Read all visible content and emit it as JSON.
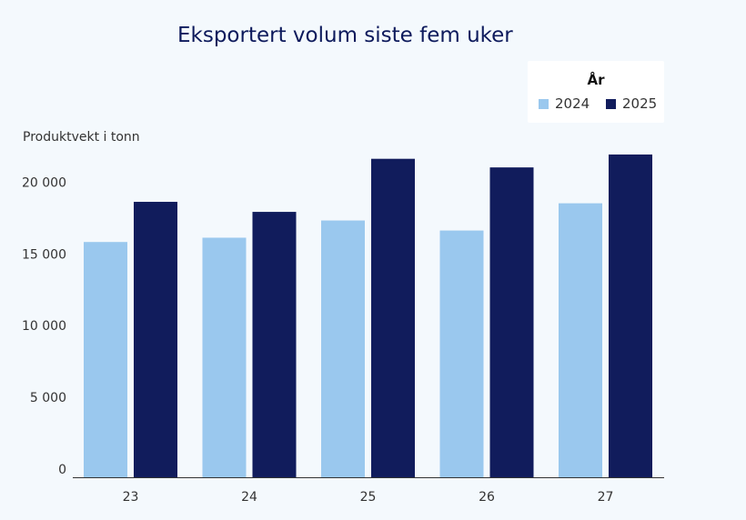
{
  "chart_data": {
    "type": "bar",
    "title": "Eksportert volum siste fem uker",
    "ylabel": "Produktvekt i tonn",
    "xlabel": "",
    "categories": [
      "23",
      "24",
      "25",
      "26",
      "27"
    ],
    "series": [
      {
        "name": "2024",
        "color": "#9ac8ee",
        "values": [
          16400,
          16700,
          17900,
          17200,
          19100
        ]
      },
      {
        "name": "2025",
        "color": "#111c5c",
        "values": [
          19200,
          18500,
          22200,
          21600,
          22500
        ]
      }
    ],
    "ylim": [
      0,
      23000
    ],
    "yticks": [
      0,
      5000,
      10000,
      15000,
      20000
    ],
    "ytick_labels": [
      "0",
      "5 000",
      "10 000",
      "15 000",
      "20 000"
    ],
    "legend": {
      "title": "År",
      "position": "top-right"
    },
    "grid": false
  }
}
